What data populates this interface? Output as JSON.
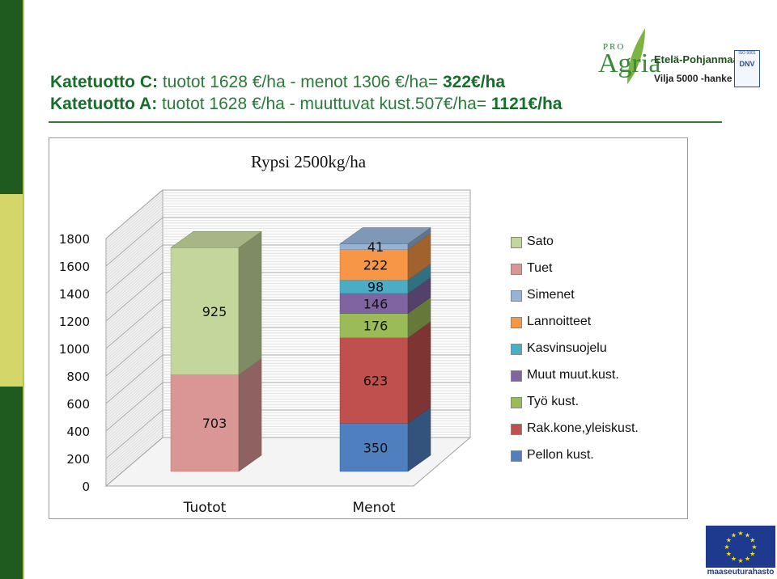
{
  "header": {
    "line1": {
      "label": "Katetuotto C:",
      "text": " tuotot 1628 €/ha - menot 1306 €/ha=",
      "result": " 322€/ha"
    },
    "line2": {
      "label": "Katetuotto A:",
      "text": " tuotot 1628 €/ha - muuttuvat kust.507€/ha=",
      "result": " 1121€/ha"
    }
  },
  "logos": {
    "pro": "PRO",
    "agria": "Agria",
    "region": "Etelä-Pohjanmaa",
    "project": "Vilja 5000 -hanke",
    "iso": "ISO 9001",
    "dnv": "DNV",
    "eu": "maaseuturahasto"
  },
  "colors": {
    "sidebar_dark": "#1f5a1f",
    "sidebar_light": "#d5d66a",
    "heading_green": "#156f2a"
  },
  "chart_data": {
    "type": "bar",
    "stacked": true,
    "three_d": true,
    "title": "Rypsi 2500kg/ha",
    "categories": [
      "Tuotot",
      "Menot"
    ],
    "ylim": [
      0,
      1800
    ],
    "yticks": [
      0,
      200,
      400,
      600,
      800,
      1000,
      1200,
      1400,
      1600,
      1800
    ],
    "grid": true,
    "legend_position": "right",
    "series": [
      {
        "name": "Pellon kust.",
        "color": "#4f7fbf",
        "values": [
          null,
          350
        ]
      },
      {
        "name": "Rak.kone,yleiskust.",
        "color": "#c0504d",
        "values": [
          null,
          623
        ]
      },
      {
        "name": "Työ kust.",
        "color": "#9bbb59",
        "values": [
          null,
          176
        ]
      },
      {
        "name": "Muut muut.kust.",
        "color": "#8064a2",
        "values": [
          null,
          146
        ]
      },
      {
        "name": "Kasvinsuojelu",
        "color": "#4bacc6",
        "values": [
          null,
          98
        ]
      },
      {
        "name": "Lannoitteet",
        "color": "#f79646",
        "values": [
          null,
          222
        ]
      },
      {
        "name": "Simenet",
        "color": "#95b3d7",
        "values": [
          null,
          41
        ]
      },
      {
        "name": "Tuet",
        "color": "#d99694",
        "values": [
          703,
          null
        ]
      },
      {
        "name": "Sato",
        "color": "#c3d69b",
        "values": [
          925,
          null
        ]
      }
    ],
    "legend_order": [
      "Sato",
      "Tuet",
      "Simenet",
      "Lannoitteet",
      "Kasvinsuojelu",
      "Muut muut.kust.",
      "Työ kust.",
      "Rak.kone,yleiskust.",
      "Pellon kust."
    ]
  }
}
